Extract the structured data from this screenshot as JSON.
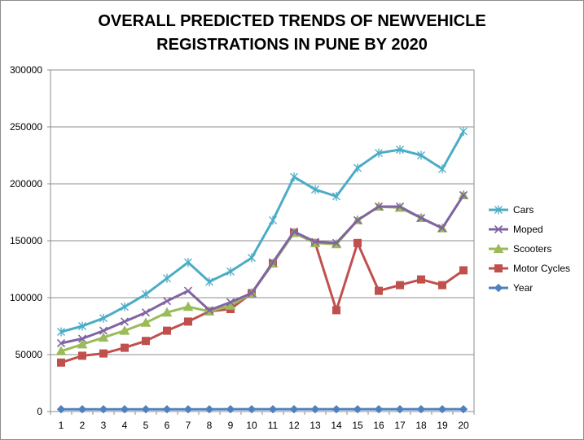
{
  "chart_data": {
    "type": "line",
    "title_lines": [
      "OVERALL PREDICTED TRENDS OF NEWVEHICLE",
      "REGISTRATIONS IN PUNE BY 2020"
    ],
    "xlabel": "",
    "ylabel": "",
    "categories": [
      "1",
      "2",
      "3",
      "4",
      "5",
      "6",
      "7",
      "8",
      "9",
      "10",
      "11",
      "12",
      "13",
      "14",
      "15",
      "16",
      "17",
      "18",
      "19",
      "20"
    ],
    "ylim": [
      0,
      300000
    ],
    "yticks": [
      "0",
      "50000",
      "100000",
      "150000",
      "200000",
      "250000",
      "300000"
    ],
    "grid": true,
    "legend_position": "right",
    "series": [
      {
        "name": "Cars",
        "color": "#4BACC6",
        "marker": "asterisk",
        "values": [
          70000,
          75000,
          82000,
          92000,
          103000,
          117000,
          131000,
          114000,
          123000,
          135000,
          168000,
          206000,
          195000,
          189000,
          214000,
          227000,
          230000,
          225000,
          213000,
          246000
        ]
      },
      {
        "name": "Moped",
        "color": "#8064A2",
        "marker": "x",
        "values": [
          60000,
          64000,
          71000,
          79000,
          87000,
          97000,
          106000,
          89000,
          96000,
          104000,
          131000,
          158000,
          149000,
          148000,
          168000,
          180000,
          180000,
          170000,
          161000,
          190000
        ]
      },
      {
        "name": "Scooters",
        "color": "#9BBB59",
        "marker": "triangle",
        "values": [
          53000,
          59000,
          65000,
          71000,
          78000,
          87000,
          92000,
          88000,
          93000,
          104000,
          130000,
          157000,
          148000,
          147000,
          168000,
          180000,
          179000,
          170000,
          161000,
          190000
        ]
      },
      {
        "name": "Motor Cycles",
        "color": "#C0504D",
        "marker": "square",
        "values": [
          43000,
          49000,
          51000,
          56000,
          62000,
          71000,
          79000,
          88000,
          90000,
          104000,
          130000,
          157000,
          148000,
          89000,
          148000,
          106000,
          111000,
          116000,
          111000,
          124000
        ]
      },
      {
        "name": "Year",
        "color": "#4F81BD",
        "marker": "diamond",
        "values": [
          2001,
          2002,
          2003,
          2004,
          2005,
          2006,
          2007,
          2008,
          2009,
          2010,
          2011,
          2012,
          2013,
          2014,
          2015,
          2016,
          2017,
          2018,
          2019,
          2020
        ]
      }
    ]
  }
}
